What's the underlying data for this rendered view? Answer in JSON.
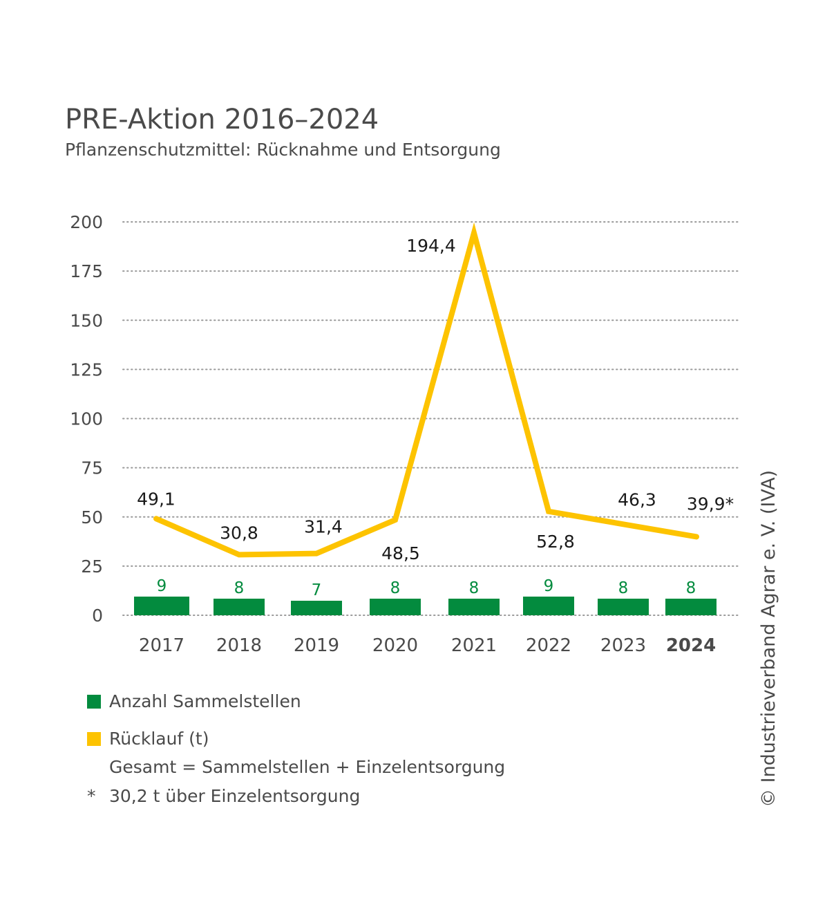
{
  "header": {
    "title": "PRE-Aktion 2016–2024",
    "subtitle": "Pflanzenschutzmittel: Rücknahme und Entsorgung"
  },
  "chart_data": {
    "type": "bar+line",
    "categories": [
      "2017",
      "2018",
      "2019",
      "2020",
      "2021",
      "2022",
      "2023",
      "2024"
    ],
    "highlight_category": "2024",
    "ylim": [
      0,
      200
    ],
    "yticks": [
      0,
      25,
      50,
      75,
      100,
      125,
      150,
      175,
      200
    ],
    "grid": "dotted-horizontal",
    "series": [
      {
        "name": "Anzahl Sammelstellen",
        "type": "bar",
        "color": "#038b3e",
        "values": [
          9,
          8,
          7,
          8,
          8,
          9,
          8,
          8
        ],
        "labels": [
          "9",
          "8",
          "7",
          "8",
          "8",
          "9",
          "8",
          "8"
        ]
      },
      {
        "name": "Rücklauf (t)",
        "type": "line",
        "color": "#fdc300",
        "values": [
          49.1,
          30.8,
          31.4,
          48.5,
          194.4,
          52.8,
          46.3,
          39.9
        ],
        "labels": [
          "49,1",
          "30,8",
          "31,4",
          "48,5",
          "194,4",
          "52,8",
          "46,3",
          "39,9*"
        ]
      }
    ]
  },
  "legend": {
    "bars_label": "Anzahl Sammelstellen",
    "line_label": "Rücklauf (t)",
    "line_note": "Gesamt = Sammelstellen + Einzelentsorgung",
    "bar_color": "#038b3e",
    "line_color": "#fdc300"
  },
  "footnote": {
    "marker": "*",
    "text": "30,2 t über Einzelentsorgung"
  },
  "credit": "© Industrieverband Agrar e. V. (IVA)"
}
